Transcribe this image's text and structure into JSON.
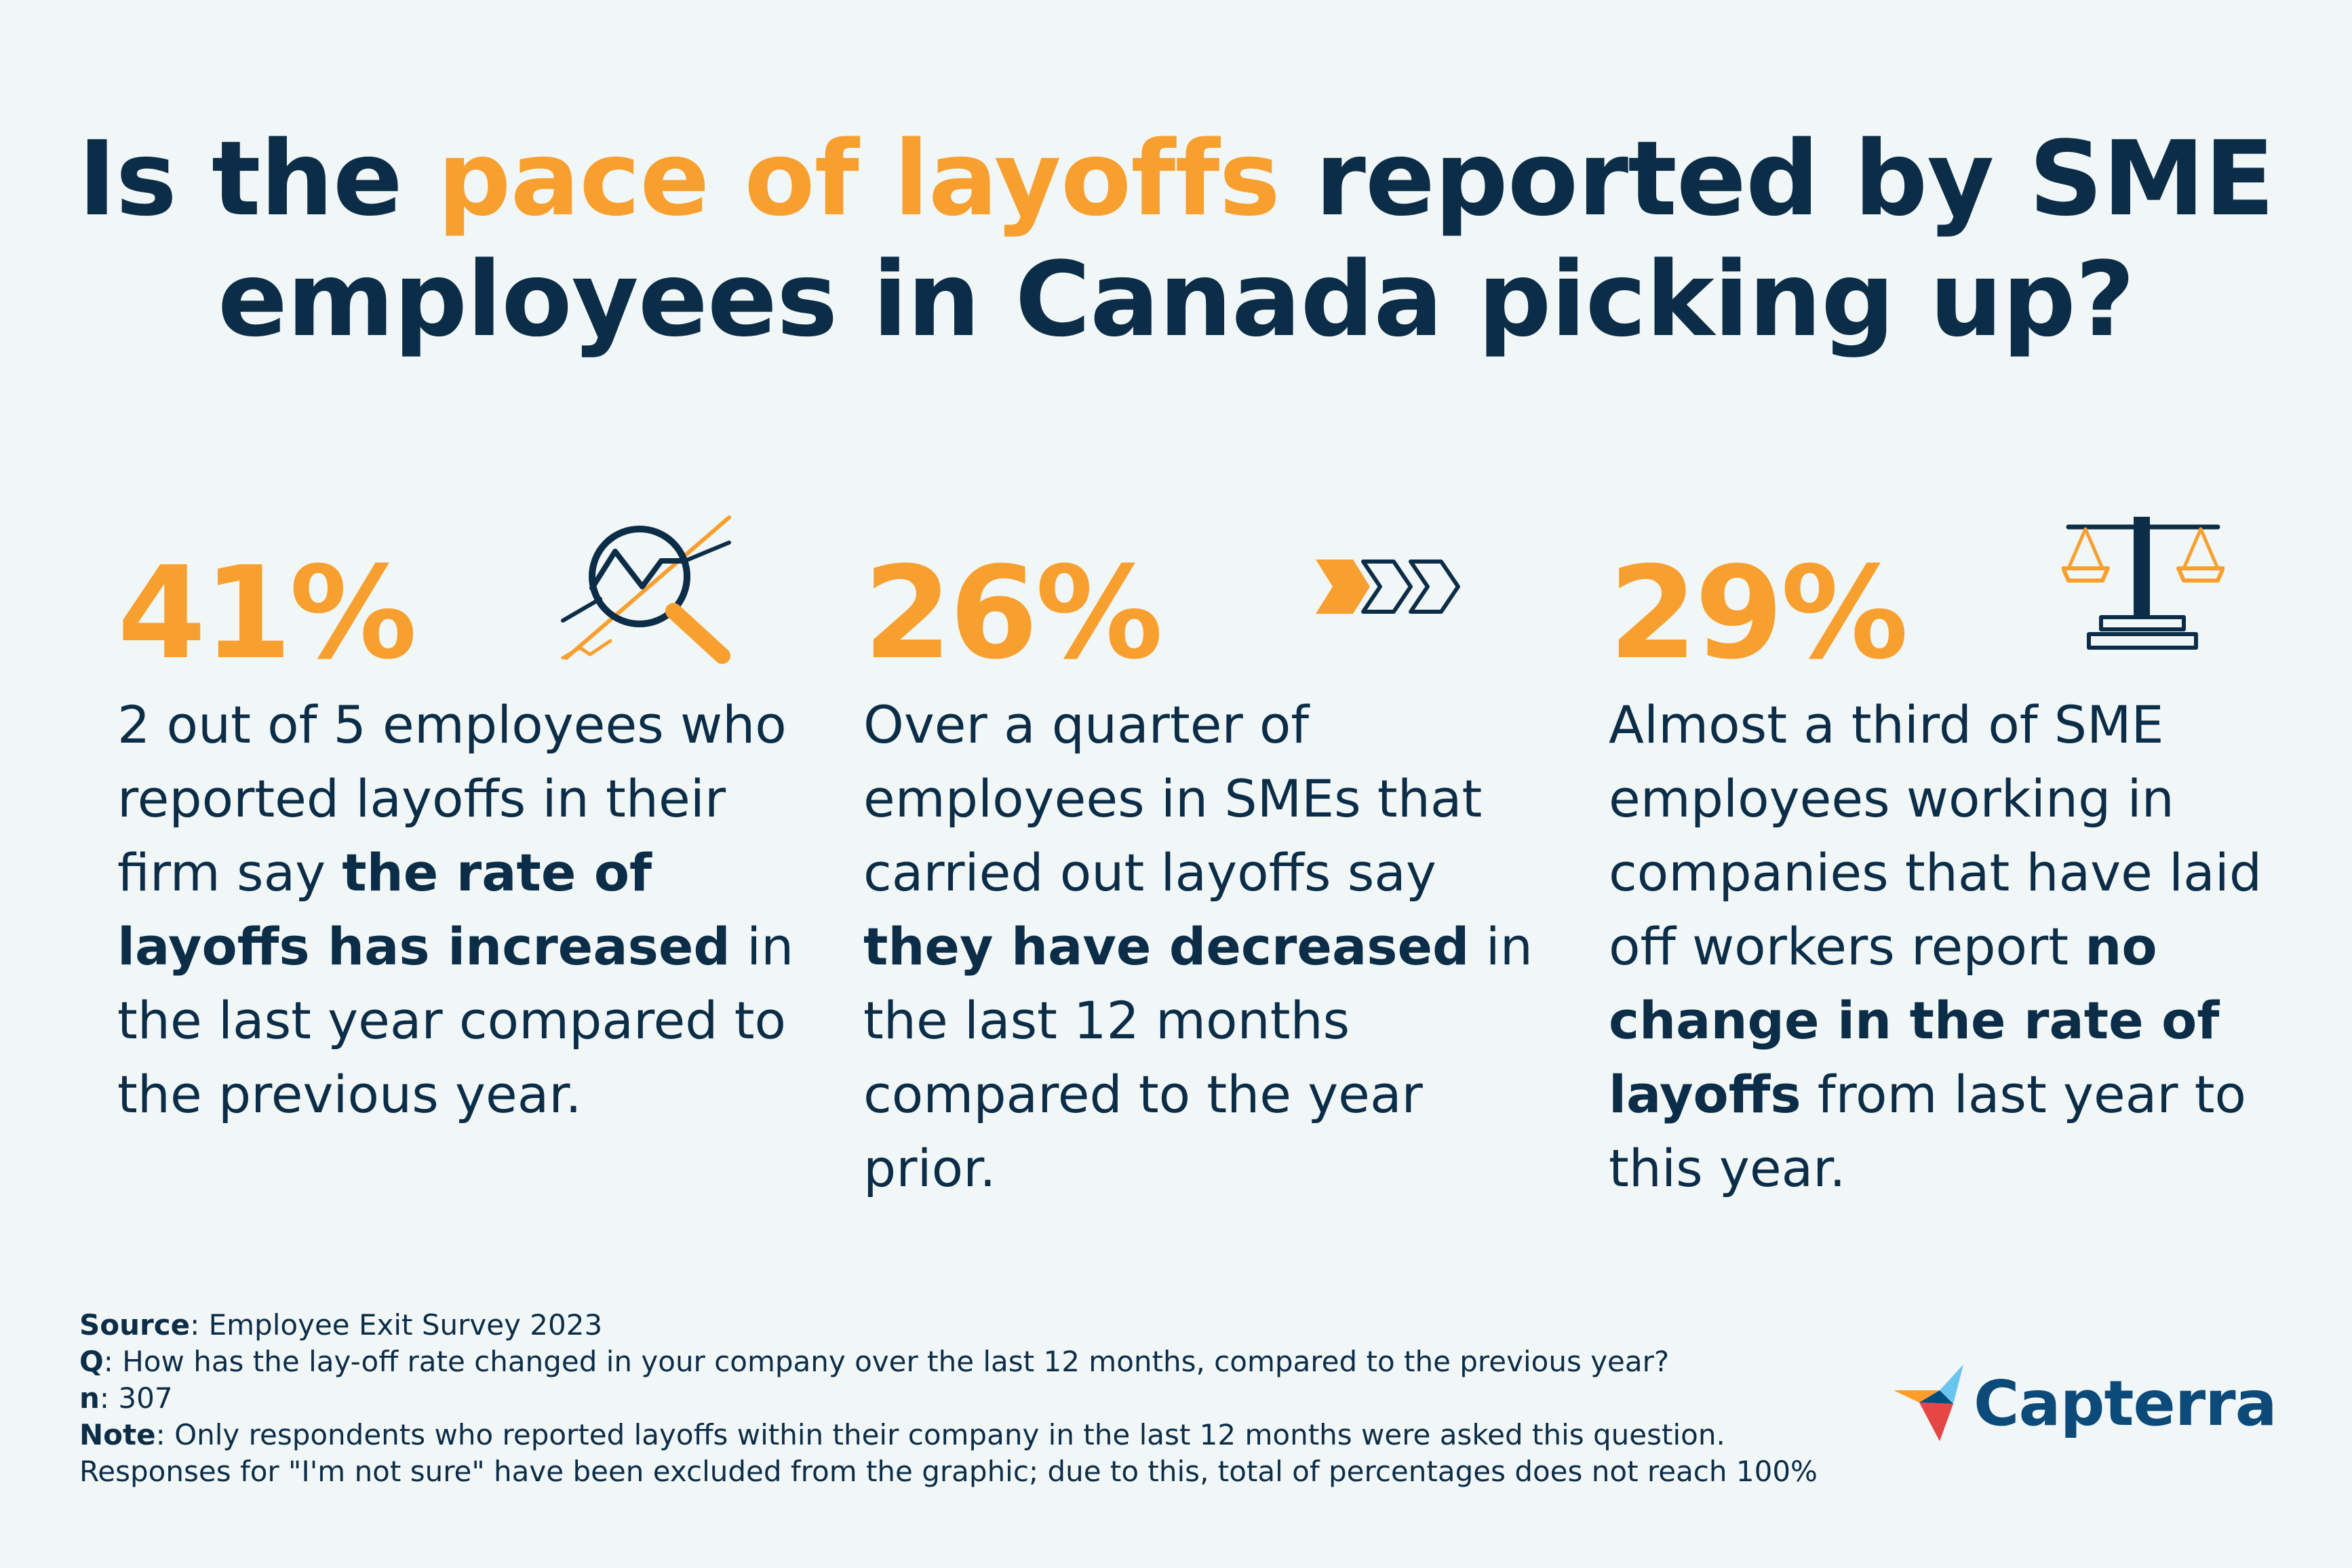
{
  "header": {
    "title_part1": "Is the ",
    "title_highlight": "pace of layoffs",
    "title_part2": " reported by SME",
    "title_line2": "employees in Canada picking up?"
  },
  "stats": [
    {
      "value": "41%",
      "icon": "magnifier-trend-icon",
      "text_a": "2 out of 5 employees who reported layoffs in their firm say ",
      "bold": "the rate of layoffs has increased",
      "text_b": " in the last year compared to the previous year."
    },
    {
      "value": "26%",
      "icon": "forward-chevrons-icon",
      "text_a": "Over a quarter of employees in SMEs that carried out layoffs say ",
      "bold": "they have decreased",
      "text_b": " in the last 12 months compared to the year prior."
    },
    {
      "value": "29%",
      "icon": "balance-scale-icon",
      "text_a": "Almost a third of SME employees working in companies that have laid off workers report ",
      "bold": "no change in the rate of layoffs",
      "text_b": " from last year to this year."
    }
  ],
  "footer": {
    "source_label": "Source",
    "source_value": ": Employee Exit Survey 2023",
    "q_label": "Q",
    "q_value": ": How has the lay-off rate changed in your company over the last 12 months, compared to the previous year?",
    "n_label": "n",
    "n_value": ": 307",
    "note_label": "Note",
    "note_value": ": Only respondents who reported layoffs within their company in the last 12 months were asked this question.",
    "note_line2": "Responses for \"I'm not sure\" have been excluded from the graphic; due to this, total of percentages does not reach 100%"
  },
  "brand": {
    "name": "Capterra",
    "accent": "#f7a030",
    "navy": "#0c2d48"
  }
}
